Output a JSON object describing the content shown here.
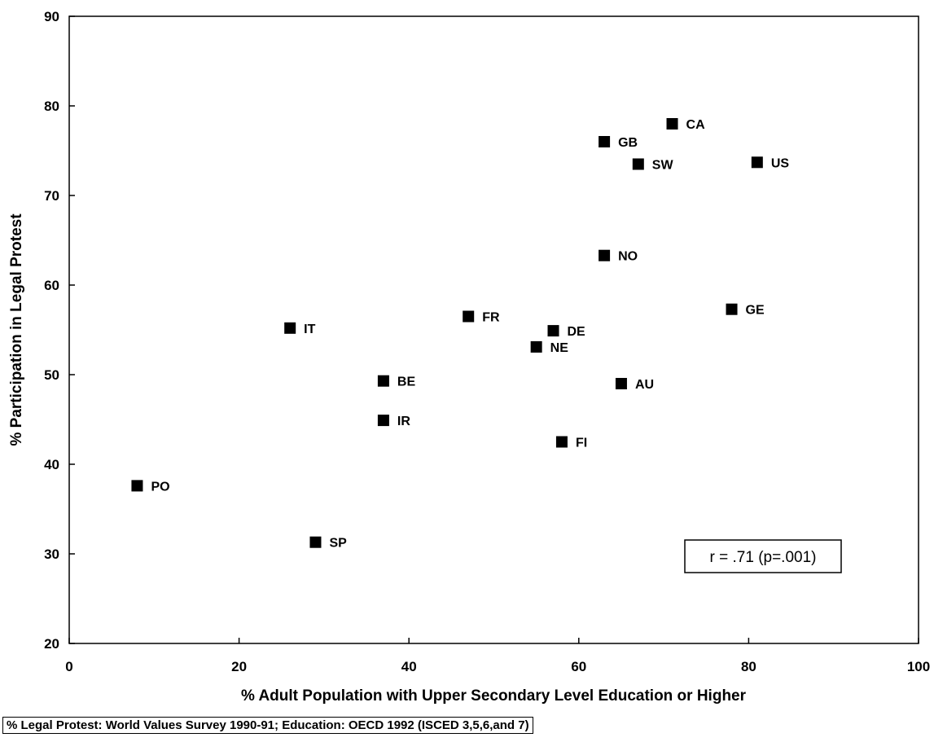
{
  "chart_data": {
    "type": "scatter",
    "title": "",
    "xlabel": "% Adult Population with Upper Secondary Level Education or Higher",
    "ylabel": "% Participation in Legal Protest",
    "xlim": [
      0,
      100
    ],
    "ylim": [
      20,
      90
    ],
    "x_ticks": [
      "0",
      "20",
      "40",
      "60",
      "80",
      "100"
    ],
    "y_ticks": [
      "20",
      "30",
      "40",
      "50",
      "60",
      "70",
      "80",
      "90"
    ],
    "grid": false,
    "points": [
      {
        "label": "CA",
        "x": 71,
        "y": 78
      },
      {
        "label": "GB",
        "x": 63,
        "y": 76
      },
      {
        "label": "SW",
        "x": 67,
        "y": 73.5
      },
      {
        "label": "US",
        "x": 81,
        "y": 73.7
      },
      {
        "label": "NO",
        "x": 63,
        "y": 63.3
      },
      {
        "label": "GE",
        "x": 78,
        "y": 57.3
      },
      {
        "label": "FR",
        "x": 47,
        "y": 56.5
      },
      {
        "label": "IT",
        "x": 26,
        "y": 55.2
      },
      {
        "label": "DE",
        "x": 57,
        "y": 54.9
      },
      {
        "label": "NE",
        "x": 55,
        "y": 53.1
      },
      {
        "label": "BE",
        "x": 37,
        "y": 49.3
      },
      {
        "label": "AU",
        "x": 65,
        "y": 49
      },
      {
        "label": "IR",
        "x": 37,
        "y": 44.9
      },
      {
        "label": "FI",
        "x": 58,
        "y": 42.5
      },
      {
        "label": "PO",
        "x": 8,
        "y": 37.6
      },
      {
        "label": "SP",
        "x": 29,
        "y": 31.3
      }
    ],
    "annotation": "r = .71 (p=.001)",
    "source": "% Legal Protest: World Values Survey 1990-91; Education: OECD 1992 (ISCED 3,5,6,and 7)"
  }
}
